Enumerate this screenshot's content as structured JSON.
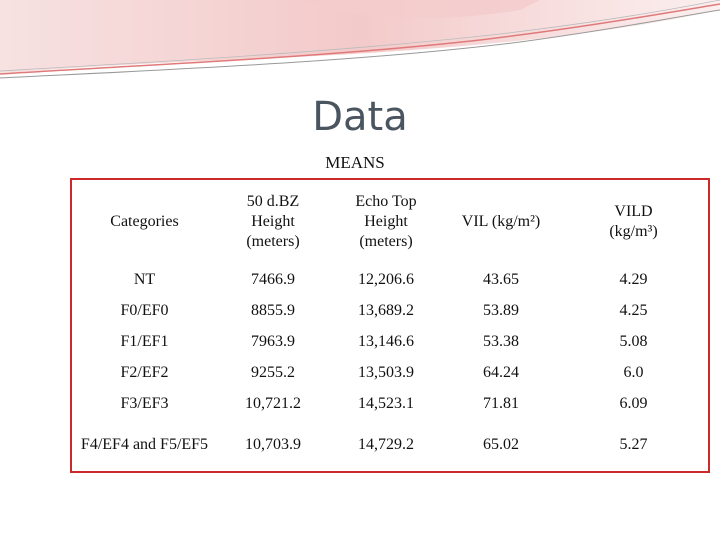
{
  "title": "Data",
  "caption": "MEANS",
  "colors": {
    "accent": "#cc2a2a",
    "title": "#4a5560",
    "deco": "#e07a7a"
  },
  "table": {
    "headers": [
      "Categories",
      "50 d.BZ Height (meters)",
      "Echo Top Height (meters)",
      "VIL (kg/m²)",
      "VILD (kg/m³)"
    ],
    "rows": [
      [
        "NT",
        "7466.9",
        "12,206.6",
        "43.65",
        "4.29"
      ],
      [
        "F0/EF0",
        "8855.9",
        "13,689.2",
        "53.89",
        "4.25"
      ],
      [
        "F1/EF1",
        "7963.9",
        "13,146.6",
        "53.38",
        "5.08"
      ],
      [
        "F2/EF2",
        "9255.2",
        "13,503.9",
        "64.24",
        "6.0"
      ],
      [
        "F3/EF3",
        "10,721.2",
        "14,523.1",
        "71.81",
        "6.09"
      ],
      [
        "F4/EF4 and F5/EF5",
        "10,703.9",
        "14,729.2",
        "65.02",
        "5.27"
      ]
    ]
  }
}
